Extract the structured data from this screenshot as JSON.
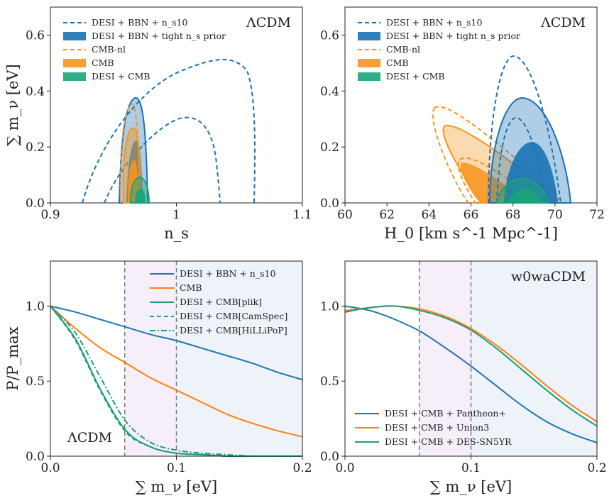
{
  "colors": {
    "blue": "#1f77b4",
    "orange": "#ff7f0e",
    "green": "#2ca02c",
    "desi_blue": "#1a73b5",
    "cmb_orange": "#f7941d",
    "teal": "#1aa37a"
  },
  "chart_data": [
    {
      "type": "contour",
      "panel": "top-left",
      "corner_label": "ΛCDM",
      "xlabel": "n_s",
      "ylabel": "∑ m_ν [eV]",
      "xlim": [
        0.9,
        1.1
      ],
      "ylim": [
        0,
        0.7
      ],
      "xticks": [
        "0.9",
        "1",
        "1.1"
      ],
      "yticks": [
        "0.0",
        "0.2",
        "0.4",
        "0.6"
      ],
      "legend": [
        "DESI + BBN + n_s10",
        "DESI + BBN + tight n_s prior",
        "CMB-nl",
        "CMB",
        "DESI + CMB"
      ]
    },
    {
      "type": "contour",
      "panel": "top-right",
      "corner_label": "ΛCDM",
      "xlabel": "H_0 [km s^-1 Mpc^-1]",
      "ylabel": "",
      "xlim": [
        60,
        72
      ],
      "ylim": [
        0,
        0.7
      ],
      "xticks": [
        "60",
        "62",
        "64",
        "66",
        "68",
        "70",
        "72"
      ],
      "yticks": [
        "0.0",
        "0.2",
        "0.4",
        "0.6"
      ],
      "legend": [
        "DESI + BBN + n_s10",
        "DESI + BBN + tight n_s prior",
        "CMB-nl",
        "CMB",
        "DESI + CMB"
      ]
    },
    {
      "type": "line",
      "panel": "bottom-left",
      "corner_label": "ΛCDM",
      "xlabel": "∑ m_ν [eV]",
      "ylabel": "P/P_max",
      "xlim": [
        0,
        0.2
      ],
      "ylim": [
        0,
        1.3
      ],
      "xticks": [
        "0.0",
        "0.1",
        "0.2"
      ],
      "yticks": [
        "0.0",
        "0.5",
        "1.0"
      ],
      "vlines": [
        0.059,
        0.1
      ],
      "x": [
        0,
        0.02,
        0.04,
        0.06,
        0.08,
        0.1,
        0.12,
        0.14,
        0.16,
        0.18,
        0.2
      ],
      "series": [
        {
          "name": "DESI + BBN + n_s10",
          "style": "solid",
          "color": "#1f77b4",
          "values": [
            1.0,
            0.96,
            0.91,
            0.86,
            0.81,
            0.77,
            0.72,
            0.67,
            0.62,
            0.56,
            0.51
          ]
        },
        {
          "name": "CMB",
          "style": "solid",
          "color": "#ff7f0e",
          "values": [
            1.0,
            0.85,
            0.72,
            0.62,
            0.52,
            0.44,
            0.36,
            0.28,
            0.22,
            0.17,
            0.13
          ]
        },
        {
          "name": "DESI + CMB[plik]",
          "style": "solid",
          "color": "#1a9e72",
          "values": [
            1.0,
            0.78,
            0.44,
            0.17,
            0.06,
            0.02,
            0.01,
            0.0,
            0.0,
            0.0,
            0.0
          ]
        },
        {
          "name": "DESI + CMB[CamSpec]",
          "style": "dashed",
          "color": "#1a9e72",
          "values": [
            1.0,
            0.77,
            0.43,
            0.16,
            0.06,
            0.02,
            0.01,
            0.0,
            0.0,
            0.0,
            0.0
          ]
        },
        {
          "name": "DESI + CMB[HiLLiPoP]",
          "style": "dashdot",
          "color": "#1a9e72",
          "values": [
            1.0,
            0.82,
            0.52,
            0.23,
            0.09,
            0.04,
            0.02,
            0.01,
            0.0,
            0.0,
            0.0
          ]
        }
      ]
    },
    {
      "type": "line",
      "panel": "bottom-right",
      "corner_label": "w0waCDM",
      "xlabel": "∑ m_ν [eV]",
      "ylabel": "",
      "xlim": [
        0,
        0.2
      ],
      "ylim": [
        0,
        1.3
      ],
      "xticks": [
        "0.0",
        "0.1",
        "0.2"
      ],
      "yticks": [
        "0.0",
        "0.5",
        "1.0"
      ],
      "vlines": [
        0.059,
        0.1
      ],
      "x": [
        0,
        0.02,
        0.04,
        0.06,
        0.08,
        0.1,
        0.12,
        0.14,
        0.16,
        0.18,
        0.2
      ],
      "series": [
        {
          "name": "DESI + CMB + Pantheon+",
          "style": "solid",
          "color": "#1f77b4",
          "values": [
            1.0,
            0.97,
            0.91,
            0.83,
            0.72,
            0.6,
            0.47,
            0.34,
            0.23,
            0.15,
            0.09
          ]
        },
        {
          "name": "DESI + CMB + Union3",
          "style": "solid",
          "color": "#ff7f0e",
          "values": [
            0.97,
            0.99,
            1.0,
            0.98,
            0.93,
            0.85,
            0.74,
            0.61,
            0.47,
            0.34,
            0.23
          ]
        },
        {
          "name": "DESI + CMB + DES-SN5YR",
          "style": "solid",
          "color": "#1a9e72",
          "values": [
            0.96,
            0.99,
            1.0,
            0.97,
            0.92,
            0.84,
            0.72,
            0.58,
            0.44,
            0.31,
            0.2
          ]
        }
      ]
    }
  ]
}
